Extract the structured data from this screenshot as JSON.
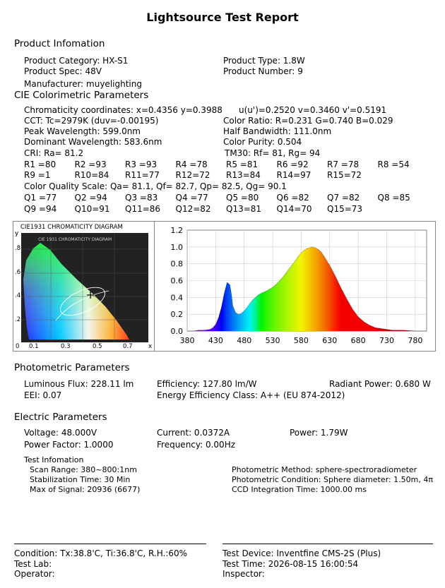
{
  "title": "Lightsource Test Report",
  "product": {
    "heading": "Product Infomation",
    "category": "Product Category: HX-S1",
    "type": "Product Type: 1.8W",
    "spec": "Product Spec: 48V",
    "number": "Product Number: 9",
    "manufacturer": "Manufacturer: muyelighting"
  },
  "cie": {
    "heading": "CIE Colorimetric Parameters",
    "chromaticity": "Chromaticity coordinates: x=0.4356 y=0.3988",
    "uv": "u(u')=0.2520 v=0.3460 v'=0.5191",
    "cct": "CCT: Tc=2979K (duv=-0.00195)",
    "color_ratio": "Color Ratio: R=0.231  G=0.740  B=0.029",
    "peak": "Peak Wavelength: 599.0nm",
    "half_bw": "Half Bandwidth: 111.0nm",
    "dominant": "Dominant Wavelength: 583.6nm",
    "purity": "Color Purity: 0.504",
    "cri": "CRI: Ra= 81.2",
    "tm30": "TM30: Rf=  81, Rg=   94",
    "r_row1": [
      "R1 =80",
      "R2 =93",
      "R3 =93",
      "R4 =78",
      "R5 =81",
      "R6 =92",
      "R7 =78",
      "R8 =54"
    ],
    "r_row2": [
      "R9 =1",
      "R10=84",
      "R11=77",
      "R12=72",
      "R13=84",
      "R14=97",
      "R15=72"
    ],
    "cqs": "Color Quality Scale: Qa= 81.1, Qf= 82.7, Qp= 82.5, Qg= 90.1",
    "q_row1": [
      "Q1 =77",
      "Q2 =94",
      "Q3 =83",
      "Q4 =77",
      "Q5 =80",
      "Q6 =82",
      "Q7 =82",
      "Q8 =85"
    ],
    "q_row2": [
      "Q9 =94",
      "Q10=91",
      "Q11=86",
      "Q12=82",
      "Q13=81",
      "Q14=70",
      "Q15=73"
    ]
  },
  "cie_diagram": {
    "title": "CIE1931 CHROMATICITY DIAGRAM",
    "inner_title": "CIE 1931 CHROMATICITY DIAGRAM",
    "y_label": "y",
    "x_label": "x",
    "y_ticks": [
      ".8",
      ".6",
      ".4",
      ".2"
    ],
    "x_ticks": [
      "0",
      "0.1",
      "0.3",
      "0.5",
      "0.7"
    ],
    "point": {
      "x": 0.4356,
      "y": 0.3988
    }
  },
  "chart_data": {
    "type": "area",
    "title": "",
    "xlabel": "",
    "ylabel": "",
    "xlim": [
      380,
      800
    ],
    "ylim": [
      0,
      1.2
    ],
    "x_ticks": [
      380,
      430,
      480,
      530,
      580,
      630,
      680,
      730,
      780
    ],
    "y_ticks": [
      "0.0",
      "0.2",
      "0.4",
      "0.6",
      "0.8",
      "1.0",
      "1.2"
    ],
    "grid": true,
    "series": [
      {
        "x": [
          380,
          390,
          400,
          410,
          420,
          425,
          430,
          435,
          440,
          445,
          450,
          455,
          458,
          460,
          465,
          470,
          475,
          480,
          485,
          490,
          495,
          500,
          505,
          510,
          520,
          530,
          540,
          550,
          560,
          570,
          575,
          580,
          585,
          590,
          595,
          599,
          605,
          610,
          615,
          620,
          630,
          640,
          650,
          660,
          670,
          680,
          690,
          700,
          710,
          720,
          730,
          740,
          760,
          780,
          800
        ],
        "y": [
          0.0,
          0.0,
          0.01,
          0.01,
          0.02,
          0.04,
          0.08,
          0.16,
          0.28,
          0.45,
          0.58,
          0.55,
          0.42,
          0.3,
          0.22,
          0.2,
          0.21,
          0.24,
          0.28,
          0.33,
          0.37,
          0.4,
          0.43,
          0.45,
          0.48,
          0.52,
          0.58,
          0.66,
          0.75,
          0.84,
          0.89,
          0.93,
          0.96,
          0.98,
          0.99,
          1.0,
          0.99,
          0.97,
          0.94,
          0.89,
          0.78,
          0.65,
          0.51,
          0.38,
          0.26,
          0.17,
          0.11,
          0.07,
          0.04,
          0.03,
          0.02,
          0.01,
          0.01,
          0.0,
          0.0
        ]
      }
    ]
  },
  "photometric": {
    "heading": "Photometric Parameters",
    "flux": "Luminous Flux: 228.11 lm",
    "efficiency": "Efficiency: 127.80 lm/W",
    "radiant": "Radiant Power: 0.680 W",
    "eei": "EEI:  0.07",
    "energy_class": "Energy Efficiency Class: A++ (EU 874-2012)"
  },
  "electric": {
    "heading": "Electric Parameters",
    "voltage": "Voltage: 48.000V",
    "current": "Current: 0.0372A",
    "power": "Power: 1.79W",
    "pf": "Power Factor: 1.0000",
    "frequency": "Frequency: 0.00Hz"
  },
  "test": {
    "heading": "Test Infomation",
    "scan": "Scan Range: 380~800:1nm",
    "stabilization": "Stabilization Time: 30 Min",
    "max_signal": "Max of Signal: 20936 (6677)",
    "method": "Photometric Method: sphere-spectroradiometer",
    "condition": "Photometric Condition: Sphere diameter: 1.50m, 4π",
    "ccd": "CCD Integration Time: 1000.00 ms"
  },
  "footer": {
    "condition": "Condition: Tx:38.8'C, Ti:36.8'C, R.H.:60%",
    "device": "Test Device: Inventfine CMS-2S (Plus)",
    "lab": "Test Lab:",
    "time": "Test Time: 2026-08-15 16:00:54",
    "operator": "Operator:",
    "inspector": "Inspector:"
  }
}
